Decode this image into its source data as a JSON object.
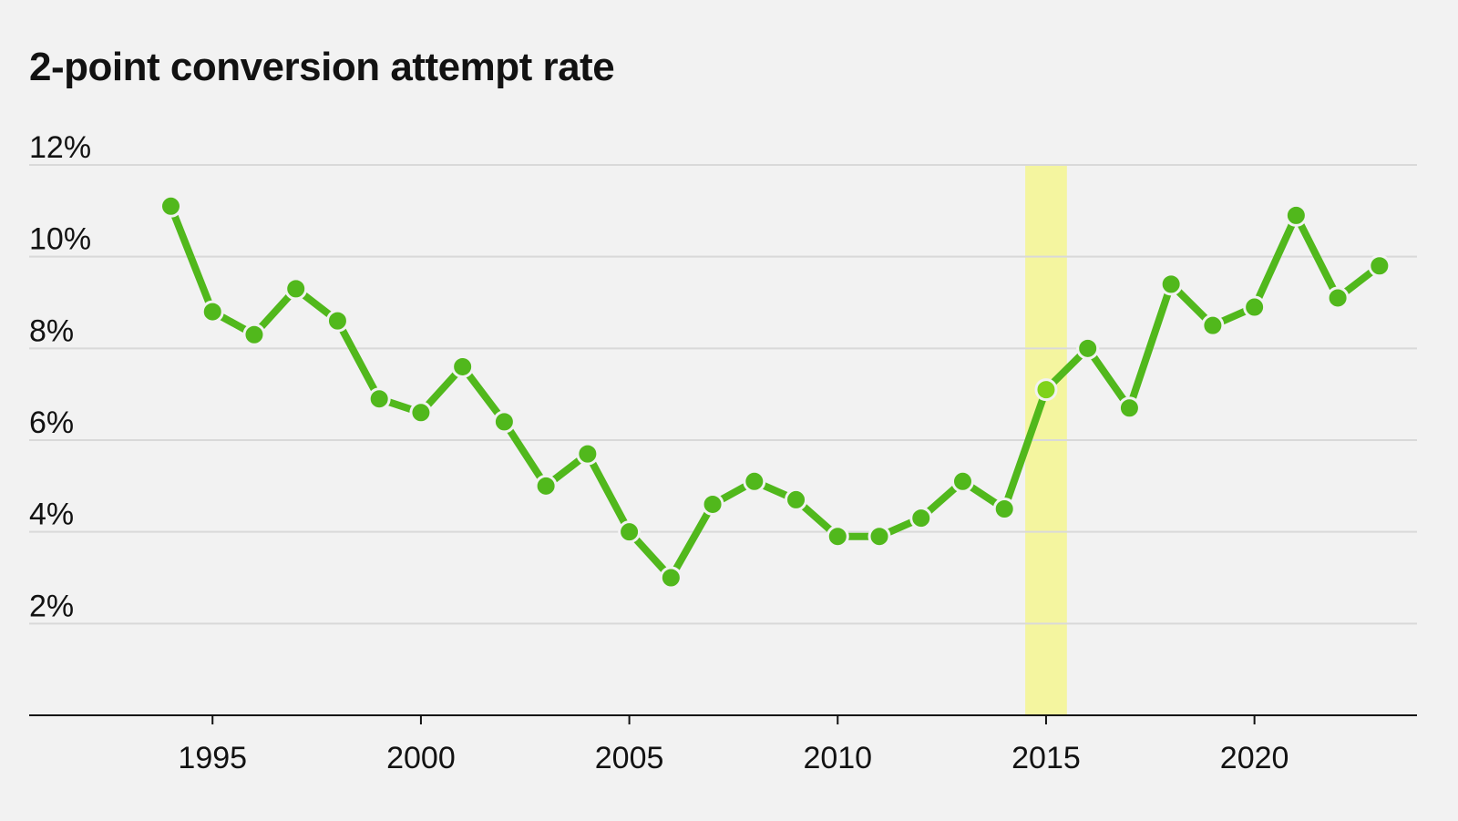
{
  "chart_data": {
    "type": "line",
    "title": "2-point conversion attempt rate",
    "xlabel": "",
    "ylabel": "",
    "x": [
      1994,
      1995,
      1996,
      1997,
      1998,
      1999,
      2000,
      2001,
      2002,
      2003,
      2004,
      2005,
      2006,
      2007,
      2008,
      2009,
      2010,
      2011,
      2012,
      2013,
      2014,
      2015,
      2016,
      2017,
      2018,
      2019,
      2020,
      2021,
      2022,
      2023
    ],
    "series": [
      {
        "values": [
          11.1,
          8.8,
          8.3,
          9.3,
          8.6,
          6.9,
          6.6,
          7.6,
          6.4,
          5.0,
          5.7,
          4.0,
          3.0,
          4.6,
          5.1,
          4.7,
          3.9,
          3.9,
          4.3,
          5.1,
          4.5,
          7.1,
          8.0,
          6.7,
          9.4,
          8.5,
          8.9,
          10.9,
          9.1,
          9.8
        ]
      }
    ],
    "xlim": [
      1990.6,
      2023.9
    ],
    "ylim": [
      0,
      12
    ],
    "x_ticks": [
      1995,
      2000,
      2005,
      2010,
      2015,
      2020
    ],
    "x_tick_labels": [
      "1995",
      "2000",
      "2005",
      "2010",
      "2015",
      "2020"
    ],
    "y_ticks": [
      2,
      4,
      6,
      8,
      10,
      12
    ],
    "y_tick_labels": [
      "2%",
      "4%",
      "6%",
      "8%",
      "10%",
      "12%"
    ],
    "highlight_x": 2015,
    "highlight_range": [
      2014.5,
      2015.5
    ],
    "grid": true,
    "legend": "none",
    "colors": {
      "line": "#51b81c",
      "highlight_point": "#7fd21a",
      "highlight_band": "#f4f59f",
      "grid": "#d9d9d9",
      "axis": "#121212",
      "background": "#f2f2f2"
    }
  }
}
